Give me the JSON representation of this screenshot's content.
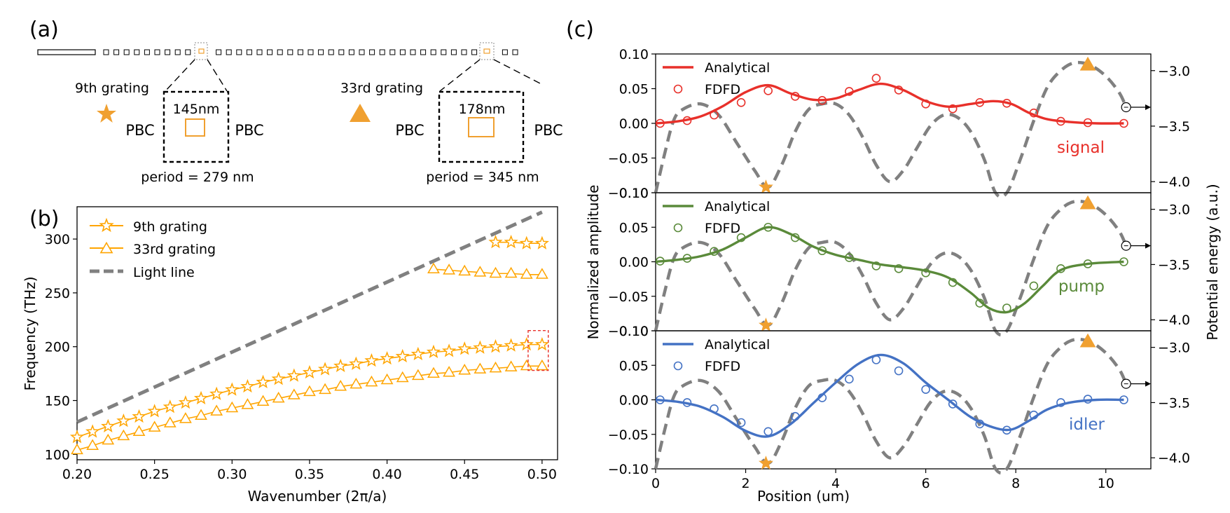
{
  "panels": {
    "a": "(a)",
    "b": "(b)",
    "c": "(c)"
  },
  "panel_a": {
    "grating9": {
      "title": "9th grating",
      "size": "145nm",
      "period": "period = 279 nm",
      "pbc_left": "PBC",
      "pbc_right": "PBC",
      "marker": "star"
    },
    "grating33": {
      "title": "33rd grating",
      "size": "178nm",
      "period": "period = 345 nm",
      "pbc_left": "PBC",
      "pbc_right": "PBC",
      "marker": "triangle"
    }
  },
  "colors": {
    "orange": "#F0A030",
    "orange_line": "#FFA500",
    "gray": "#808080",
    "red": "#E8302A",
    "green": "#5A8A3A",
    "blue": "#4472C4",
    "box_red": "#E8302A"
  },
  "chart_data": [
    {
      "id": "b",
      "type": "line",
      "xlabel": "Wavenumber (2π/a)",
      "ylabel": "Frequency (THz)",
      "xlim": [
        0.2,
        0.51
      ],
      "ylim": [
        95,
        330
      ],
      "xticks": [
        0.2,
        0.25,
        0.3,
        0.35,
        0.4,
        0.45,
        0.5
      ],
      "xtick_labels": [
        "0.20",
        "0.25",
        "0.30",
        "0.35",
        "0.40",
        "0.45",
        "0.50"
      ],
      "yticks": [
        100,
        150,
        200,
        250,
        300
      ],
      "ytick_labels": [
        "100",
        "150",
        "200",
        "250",
        "300"
      ],
      "legend": [
        "9th grating",
        "33rd grating",
        "Light line"
      ],
      "legend_position": "top-left",
      "highlight_box": {
        "x": [
          0.491,
          0.504
        ],
        "y": [
          178,
          215
        ]
      },
      "series": [
        {
          "name": "Light line",
          "style": "dashed",
          "x": [
            0.2,
            0.5
          ],
          "y": [
            130,
            325
          ]
        },
        {
          "name": "9th grating",
          "marker": "star",
          "x": [
            0.2,
            0.21,
            0.22,
            0.23,
            0.24,
            0.25,
            0.26,
            0.27,
            0.28,
            0.29,
            0.3,
            0.31,
            0.32,
            0.33,
            0.34,
            0.35,
            0.36,
            0.37,
            0.38,
            0.39,
            0.4,
            0.41,
            0.42,
            0.43,
            0.44,
            0.45,
            0.46,
            0.47,
            0.48,
            0.49,
            0.5
          ],
          "y": [
            116,
            121,
            126,
            131,
            135,
            140,
            144,
            148,
            152,
            156,
            160,
            163,
            167,
            170,
            173,
            176,
            179,
            182,
            184,
            187,
            189,
            191,
            193,
            195,
            196,
            198,
            199,
            200,
            201,
            202,
            202
          ]
        },
        {
          "name": "9th grating upper",
          "marker": "star",
          "legend": false,
          "x": [
            0.47,
            0.48,
            0.49,
            0.5
          ],
          "y": [
            297,
            297,
            296,
            296
          ]
        },
        {
          "name": "33rd grating",
          "marker": "triangle",
          "x": [
            0.2,
            0.21,
            0.22,
            0.23,
            0.24,
            0.25,
            0.26,
            0.27,
            0.28,
            0.29,
            0.3,
            0.31,
            0.32,
            0.33,
            0.34,
            0.35,
            0.36,
            0.37,
            0.38,
            0.39,
            0.4,
            0.41,
            0.42,
            0.43,
            0.44,
            0.45,
            0.46,
            0.47,
            0.48,
            0.49,
            0.5
          ],
          "y": [
            104,
            108,
            113,
            117,
            121,
            125,
            129,
            133,
            136,
            140,
            143,
            146,
            149,
            152,
            155,
            158,
            160,
            163,
            165,
            167,
            169,
            171,
            173,
            175,
            176,
            178,
            179,
            180,
            181,
            182,
            182
          ]
        },
        {
          "name": "33rd grating upper",
          "marker": "triangle",
          "legend": false,
          "x": [
            0.43,
            0.44,
            0.45,
            0.46,
            0.47,
            0.48,
            0.49,
            0.5
          ],
          "y": [
            272,
            271,
            270,
            269,
            268,
            268,
            267,
            267
          ]
        }
      ]
    },
    {
      "id": "c",
      "type": "line",
      "xlabel": "Position (um)",
      "ylabel": "Normalized amplitude",
      "y2label": "Potential energy (a.u.)",
      "xlim": [
        0,
        11
      ],
      "xticks": [
        0,
        2,
        4,
        6,
        8,
        10
      ],
      "xtick_labels": [
        "0",
        "2",
        "4",
        "6",
        "8",
        "10"
      ],
      "ylim": [
        -0.1,
        0.1
      ],
      "yticks": [
        -0.1,
        -0.05,
        0,
        0.05,
        0.1
      ],
      "ytick_labels": [
        "−0.10",
        "−0.05",
        "0.00",
        "0.05",
        "0.10"
      ],
      "y2lim": [
        -4.1,
        -2.85
      ],
      "y2ticks": [
        -4.0,
        -3.5,
        -3.0
      ],
      "y2tick_labels": [
        "−4.0",
        "−3.5",
        "−3.0"
      ],
      "star_marker": {
        "x": 2.45,
        "y2": -4.05
      },
      "triangle_marker": {
        "x": 9.6,
        "y2": -2.95
      },
      "potential": {
        "x": [
          0,
          0.2,
          0.4,
          0.6,
          1.0,
          1.4,
          1.8,
          2.2,
          2.5,
          2.8,
          3.1,
          3.4,
          3.7,
          4.0,
          4.3,
          4.6,
          4.9,
          5.2,
          5.5,
          5.8,
          6.1,
          6.4,
          6.7,
          7.0,
          7.3,
          7.55,
          7.8,
          8.1,
          8.4,
          8.7,
          9.0,
          9.3,
          9.65,
          10.0,
          10.3,
          10.45
        ],
        "y": [
          -4.1,
          -3.75,
          -3.45,
          -3.35,
          -3.3,
          -3.4,
          -3.65,
          -3.9,
          -4.05,
          -3.85,
          -3.55,
          -3.35,
          -3.3,
          -3.3,
          -3.4,
          -3.6,
          -3.85,
          -4.0,
          -3.9,
          -3.7,
          -3.5,
          -3.4,
          -3.42,
          -3.55,
          -3.8,
          -4.1,
          -4.1,
          -3.8,
          -3.45,
          -3.15,
          -3.0,
          -2.93,
          -2.95,
          -3.05,
          -3.2,
          -3.33
        ]
      },
      "arrow_label_y2": -3.33,
      "series": [
        {
          "name": "signal",
          "color": "#E8302A",
          "label": "signal",
          "legend": [
            "Analytical",
            "FDFD"
          ],
          "analytical_x": [
            0,
            0.5,
            1.0,
            1.5,
            2.0,
            2.5,
            3.0,
            3.5,
            4.0,
            4.5,
            5.0,
            5.5,
            6.0,
            6.5,
            7.0,
            7.5,
            7.9,
            8.3,
            8.7,
            9.2,
            9.8,
            10.4
          ],
          "analytical_y": [
            0,
            0.003,
            0.01,
            0.025,
            0.045,
            0.055,
            0.043,
            0.034,
            0.036,
            0.048,
            0.057,
            0.048,
            0.032,
            0.024,
            0.028,
            0.032,
            0.028,
            0.015,
            0.006,
            0.002,
            0,
            0
          ],
          "fdfd_x": [
            0.1,
            0.7,
            1.3,
            1.9,
            2.5,
            3.1,
            3.7,
            4.3,
            4.9,
            5.4,
            6.0,
            6.6,
            7.2,
            7.8,
            8.4,
            9.0,
            9.6,
            10.4
          ],
          "fdfd_y": [
            0.0,
            0.004,
            0.012,
            0.03,
            0.047,
            0.039,
            0.033,
            0.046,
            0.065,
            0.048,
            0.028,
            0.021,
            0.03,
            0.029,
            0.015,
            0.003,
            0.001,
            0.0
          ]
        },
        {
          "name": "pump",
          "color": "#5A8A3A",
          "label": "pump",
          "legend": [
            "Analytical",
            "FDFD"
          ],
          "analytical_x": [
            0,
            0.5,
            1.0,
            1.5,
            2.0,
            2.5,
            3.0,
            3.5,
            4.0,
            4.5,
            5.0,
            5.5,
            6.0,
            6.5,
            7.0,
            7.4,
            7.8,
            8.2,
            8.6,
            9.0,
            9.6,
            10.4
          ],
          "analytical_y": [
            0,
            0.003,
            0.008,
            0.018,
            0.035,
            0.05,
            0.04,
            0.022,
            0.01,
            0.003,
            -0.004,
            -0.008,
            -0.013,
            -0.023,
            -0.045,
            -0.067,
            -0.073,
            -0.06,
            -0.035,
            -0.012,
            -0.003,
            0
          ],
          "fdfd_x": [
            0.1,
            0.7,
            1.3,
            1.9,
            2.5,
            3.1,
            3.7,
            4.3,
            4.9,
            5.4,
            6.0,
            6.6,
            7.2,
            7.8,
            8.4,
            9.0,
            9.6,
            10.4
          ],
          "fdfd_y": [
            0.001,
            0.005,
            0.015,
            0.035,
            0.05,
            0.035,
            0.016,
            0.006,
            -0.006,
            -0.01,
            -0.016,
            -0.03,
            -0.06,
            -0.067,
            -0.035,
            -0.01,
            -0.003,
            0.0
          ]
        },
        {
          "name": "idler",
          "color": "#4472C4",
          "label": "idler",
          "legend": [
            "Analytical",
            "FDFD"
          ],
          "analytical_x": [
            0,
            0.5,
            1.0,
            1.5,
            2.0,
            2.5,
            3.0,
            3.5,
            4.0,
            4.5,
            5.0,
            5.5,
            6.0,
            6.5,
            7.0,
            7.5,
            7.9,
            8.3,
            8.7,
            9.2,
            9.8,
            10.4
          ],
          "analytical_y": [
            0,
            -0.003,
            -0.01,
            -0.025,
            -0.045,
            -0.053,
            -0.035,
            -0.005,
            0.025,
            0.052,
            0.065,
            0.053,
            0.025,
            0.0,
            -0.025,
            -0.04,
            -0.043,
            -0.03,
            -0.014,
            -0.004,
            0,
            0
          ],
          "fdfd_x": [
            0.1,
            0.7,
            1.3,
            1.9,
            2.5,
            3.1,
            3.7,
            4.3,
            4.9,
            5.4,
            6.0,
            6.6,
            7.2,
            7.8,
            8.4,
            9.0,
            9.6,
            10.4
          ],
          "fdfd_y": [
            0.0,
            -0.004,
            -0.013,
            -0.033,
            -0.046,
            -0.024,
            0.003,
            0.03,
            0.058,
            0.042,
            0.015,
            -0.006,
            -0.035,
            -0.044,
            -0.022,
            -0.004,
            0.001,
            0.0
          ]
        }
      ]
    }
  ]
}
